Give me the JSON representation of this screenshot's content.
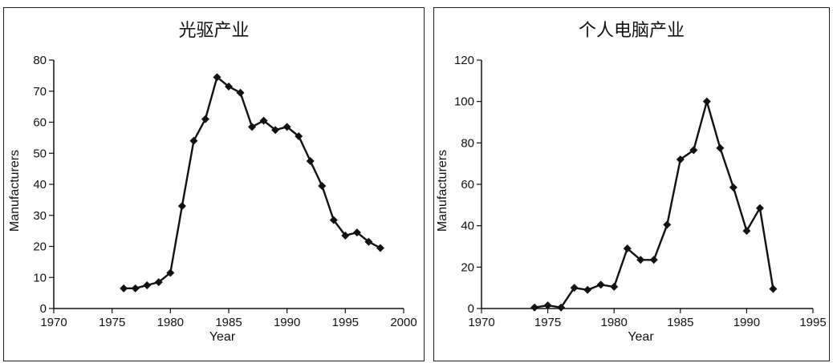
{
  "chart_data": [
    {
      "type": "line",
      "title": "光驱产业",
      "xlabel": "Year",
      "ylabel": "Manufacturers",
      "xlim": [
        1970,
        2000
      ],
      "ylim": [
        0,
        80
      ],
      "xticks": [
        1970,
        1975,
        1980,
        1985,
        1990,
        1995,
        2000
      ],
      "yticks": [
        0,
        10,
        20,
        30,
        40,
        50,
        60,
        70,
        80
      ],
      "grid": false,
      "marker": "diamond",
      "color": "#111111",
      "x": [
        1976,
        1977,
        1978,
        1979,
        1980,
        1981,
        1982,
        1983,
        1984,
        1985,
        1986,
        1987,
        1988,
        1989,
        1990,
        1991,
        1992,
        1993,
        1994,
        1995,
        1996,
        1997,
        1998
      ],
      "y": [
        6.5,
        6.5,
        7.5,
        8.5,
        11.5,
        33,
        54,
        61,
        74.5,
        71.5,
        69.5,
        58.5,
        60.5,
        57.5,
        58.5,
        55.5,
        47.5,
        39.5,
        28.5,
        23.5,
        24.5,
        21.5,
        19.5
      ]
    },
    {
      "type": "line",
      "title": "个人电脑产业",
      "xlabel": "Year",
      "ylabel": "Manufacturers",
      "xlim": [
        1970,
        1995
      ],
      "ylim": [
        0,
        120
      ],
      "xticks": [
        1970,
        1975,
        1980,
        1985,
        1990,
        1995
      ],
      "yticks": [
        0,
        20,
        40,
        60,
        80,
        100,
        120
      ],
      "grid": false,
      "marker": "diamond",
      "color": "#111111",
      "x": [
        1974,
        1975,
        1976,
        1977,
        1978,
        1979,
        1980,
        1981,
        1982,
        1983,
        1984,
        1985,
        1986,
        1987,
        1988,
        1989,
        1990,
        1991,
        1992
      ],
      "y": [
        0.5,
        1.5,
        0.5,
        10,
        9,
        11.5,
        10.5,
        29,
        23.5,
        23.5,
        40.5,
        72,
        76.5,
        100,
        77.5,
        58.5,
        37.5,
        48.5,
        9.5
      ]
    }
  ]
}
